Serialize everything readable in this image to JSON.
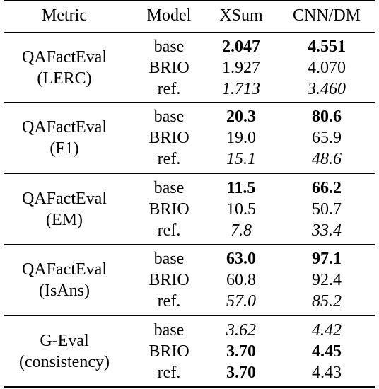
{
  "table": {
    "headers": [
      "Metric",
      "Model",
      "XSum",
      "CNN/DM"
    ],
    "groups": [
      {
        "metric_lines": [
          "QAFactEval",
          "(LERC)"
        ],
        "rows": [
          {
            "model": "base",
            "xsum": "2.047",
            "cnndm": "4.551",
            "xsum_style": "bold",
            "cnndm_style": "bold"
          },
          {
            "model": "BRIO",
            "xsum": "1.927",
            "cnndm": "4.070",
            "xsum_style": "normal",
            "cnndm_style": "normal"
          },
          {
            "model": "ref.",
            "xsum": "1.713",
            "cnndm": "3.460",
            "xsum_style": "italic",
            "cnndm_style": "italic"
          }
        ]
      },
      {
        "metric_lines": [
          "QAFactEval",
          "(F1)"
        ],
        "rows": [
          {
            "model": "base",
            "xsum": "20.3",
            "cnndm": "80.6",
            "xsum_style": "bold",
            "cnndm_style": "bold"
          },
          {
            "model": "BRIO",
            "xsum": "19.0",
            "cnndm": "65.9",
            "xsum_style": "normal",
            "cnndm_style": "normal"
          },
          {
            "model": "ref.",
            "xsum": "15.1",
            "cnndm": "48.6",
            "xsum_style": "italic",
            "cnndm_style": "italic"
          }
        ]
      },
      {
        "metric_lines": [
          "QAFactEval",
          "(EM)"
        ],
        "rows": [
          {
            "model": "base",
            "xsum": "11.5",
            "cnndm": "66.2",
            "xsum_style": "bold",
            "cnndm_style": "bold"
          },
          {
            "model": "BRIO",
            "xsum": "10.5",
            "cnndm": "50.7",
            "xsum_style": "normal",
            "cnndm_style": "normal"
          },
          {
            "model": "ref.",
            "xsum": "7.8",
            "cnndm": "33.4",
            "xsum_style": "italic",
            "cnndm_style": "italic"
          }
        ]
      },
      {
        "metric_lines": [
          "QAFactEval",
          "(IsAns)"
        ],
        "rows": [
          {
            "model": "base",
            "xsum": "63.0",
            "cnndm": "97.1",
            "xsum_style": "bold",
            "cnndm_style": "bold"
          },
          {
            "model": "BRIO",
            "xsum": "60.8",
            "cnndm": "92.4",
            "xsum_style": "normal",
            "cnndm_style": "normal"
          },
          {
            "model": "ref.",
            "xsum": "57.0",
            "cnndm": "85.2",
            "xsum_style": "italic",
            "cnndm_style": "italic"
          }
        ]
      },
      {
        "metric_lines": [
          "G-Eval",
          "(consistency)"
        ],
        "rows": [
          {
            "model": "base",
            "xsum": "3.62",
            "cnndm": "4.42",
            "xsum_style": "italic",
            "cnndm_style": "italic"
          },
          {
            "model": "BRIO",
            "xsum": "3.70",
            "cnndm": "4.45",
            "xsum_style": "bold",
            "cnndm_style": "bold"
          },
          {
            "model": "ref.",
            "xsum": "3.70",
            "cnndm": "4.43",
            "xsum_style": "bold",
            "cnndm_style": "normal"
          }
        ]
      }
    ]
  }
}
